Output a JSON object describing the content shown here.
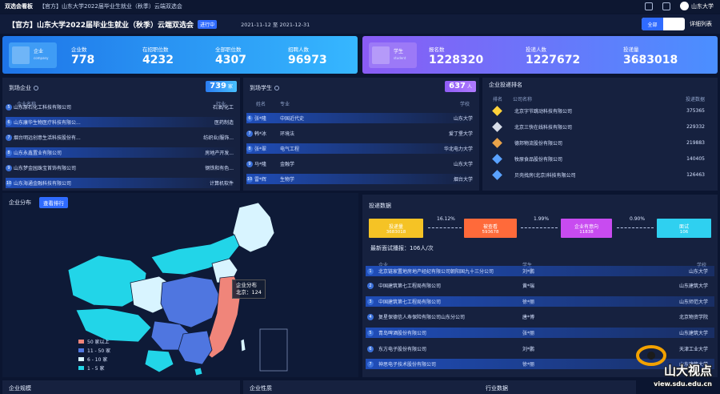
{
  "window": {
    "app_name": "双选会看板",
    "title": "【官方】山东大学2022届毕业生就业（秋季）云端双选会",
    "user": "山东大学"
  },
  "header": {
    "title": "【官方】山东大学2022届毕业生就业（秋季）云端双选会",
    "status_badge": "进行中",
    "date_range": "2021-11-12 至 2021-12-31",
    "segment_on": "全部",
    "segment_off": "",
    "detail_link": "详细列表"
  },
  "enterprise_stats": {
    "label": "企业",
    "label_en": "company",
    "items": [
      {
        "key": "企业数",
        "value": "778"
      },
      {
        "key": "在招职位数",
        "value": "4232"
      },
      {
        "key": "全部职位数",
        "value": "4307"
      },
      {
        "key": "招聘人数",
        "value": "96973"
      }
    ]
  },
  "student_stats": {
    "label": "学生",
    "label_en": "student",
    "items": [
      {
        "key": "报名数",
        "value": "1228320"
      },
      {
        "key": "投递人数",
        "value": "1227672"
      },
      {
        "key": "投递量",
        "value": "3683018"
      }
    ]
  },
  "arrived_companies": {
    "title": "到场企业",
    "count": "739",
    "unit": "家",
    "col_name": "企业名称",
    "col_industry": "行业",
    "rows": [
      {
        "num": "5",
        "name": "山东原石化工科技有限公司",
        "industry": "石油/化工"
      },
      {
        "num": "6",
        "name": "山东康华生物医疗科技有限公...",
        "industry": "医药制造"
      },
      {
        "num": "7",
        "name": "烟台明远创意生活科技股份有...",
        "industry": "纺织业/服饰..."
      },
      {
        "num": "8",
        "name": "山东永鑫置业有限公司",
        "industry": "房地产开发..."
      },
      {
        "num": "9",
        "name": "山东梦金园珠宝首饰有限公司",
        "industry": "钢铁和有色..."
      },
      {
        "num": "10",
        "name": "山东海通金融科技有限公司",
        "industry": "计算机软件"
      }
    ]
  },
  "arrived_students": {
    "title": "到场学生",
    "count": "637",
    "unit": "人",
    "col_name": "姓名",
    "col_major": "专业",
    "col_school": "学校",
    "rows": [
      {
        "num": "6",
        "name": "张*隆",
        "major": "中国近代史",
        "school": "山东大学"
      },
      {
        "num": "7",
        "name": "韩*冰",
        "major": "环境法",
        "school": "爱丁堡大学"
      },
      {
        "num": "8",
        "name": "张*翠",
        "major": "电气工程",
        "school": "华北电力大学"
      },
      {
        "num": "9",
        "name": "马*隆",
        "major": "金融学",
        "school": "山东大学"
      },
      {
        "num": "10",
        "name": "雷*辉",
        "major": "生物学",
        "school": "烟台大学"
      }
    ]
  },
  "delivery_rank": {
    "title": "企业投递排名",
    "col_rank": "排名",
    "col_company": "公司名称",
    "col_count": "投递数据",
    "rows": [
      {
        "medal": "#ffd23a",
        "name": "北京字节跳动科技有限公司",
        "value": "375365"
      },
      {
        "medal": "#d7dde8",
        "name": "北京三快在线科技有限公司",
        "value": "229332"
      },
      {
        "medal": "#e9a34a",
        "name": "德邦物流股份有限公司",
        "value": "219883"
      },
      {
        "medal": "#5aa2ff",
        "name": "牧原食品股份有限公司",
        "value": "140405"
      },
      {
        "medal": "#5aa2ff",
        "name": "贝壳找房(北京)科技有限公司",
        "value": "126463"
      }
    ]
  },
  "map": {
    "title": "企业分布",
    "button": "查看排行",
    "tooltip_title": "企业分布",
    "tooltip_value": "北京：124",
    "legend": [
      {
        "label": "50 家以上",
        "color": "#f0857a"
      },
      {
        "label": "11 - 50 家",
        "color": "#4f76e0"
      },
      {
        "label": "6 - 10 家",
        "color": "#d8f4ff"
      },
      {
        "label": "1 - 5 家",
        "color": "#22d5e8"
      }
    ]
  },
  "delivery": {
    "title": "投递数据",
    "funnel": [
      {
        "label": "投递量",
        "value": "3683018",
        "color": "#f5c325"
      },
      {
        "label": "被查看",
        "value": "593678",
        "color": "#ff6a3a"
      },
      {
        "label": "企业有意向",
        "value": "11838",
        "color": "#c84bf0"
      },
      {
        "label": "面试",
        "value": "106",
        "color": "#2fd0f0"
      }
    ],
    "rates": [
      "16.12%",
      "1.99%",
      "0.90%"
    ],
    "interview_caption": "最新面试播报：106人/次",
    "col_company": "企业",
    "col_student": "学生",
    "col_school": "学校",
    "rows": [
      {
        "num": "1",
        "company": "北京链家置地房地产经纪有限公司朝阳国九十三分公司",
        "student": "刘*鹏",
        "school": "山东大学"
      },
      {
        "num": "2",
        "company": "中国建筑第七工程局有限公司",
        "student": "黄*瑞",
        "school": "山东建筑大学"
      },
      {
        "num": "3",
        "company": "中国建筑第七工程局有限公司",
        "student": "徐*丽",
        "school": "山东师范大学"
      },
      {
        "num": "4",
        "company": "复星保德信人寿保险有限公司山东分公司",
        "student": "唐*博",
        "school": "北京物资学院"
      },
      {
        "num": "5",
        "company": "青岛啤酒股份有限公司",
        "student": "张*丽",
        "school": "山东建筑大学"
      },
      {
        "num": "6",
        "company": "东方电子股份有限公司",
        "student": "刘*鹏",
        "school": "天津工业大学"
      },
      {
        "num": "7",
        "company": "神思电子技术股份有限公司",
        "student": "徐*丽",
        "school": "山东建筑大学"
      }
    ]
  },
  "bottom": {
    "scale": "企业规模",
    "nature": "企业性质",
    "industry": "行业数据"
  },
  "watermark": {
    "logo_text": "山大视点",
    "url": "view.sdu.edu.cn"
  }
}
